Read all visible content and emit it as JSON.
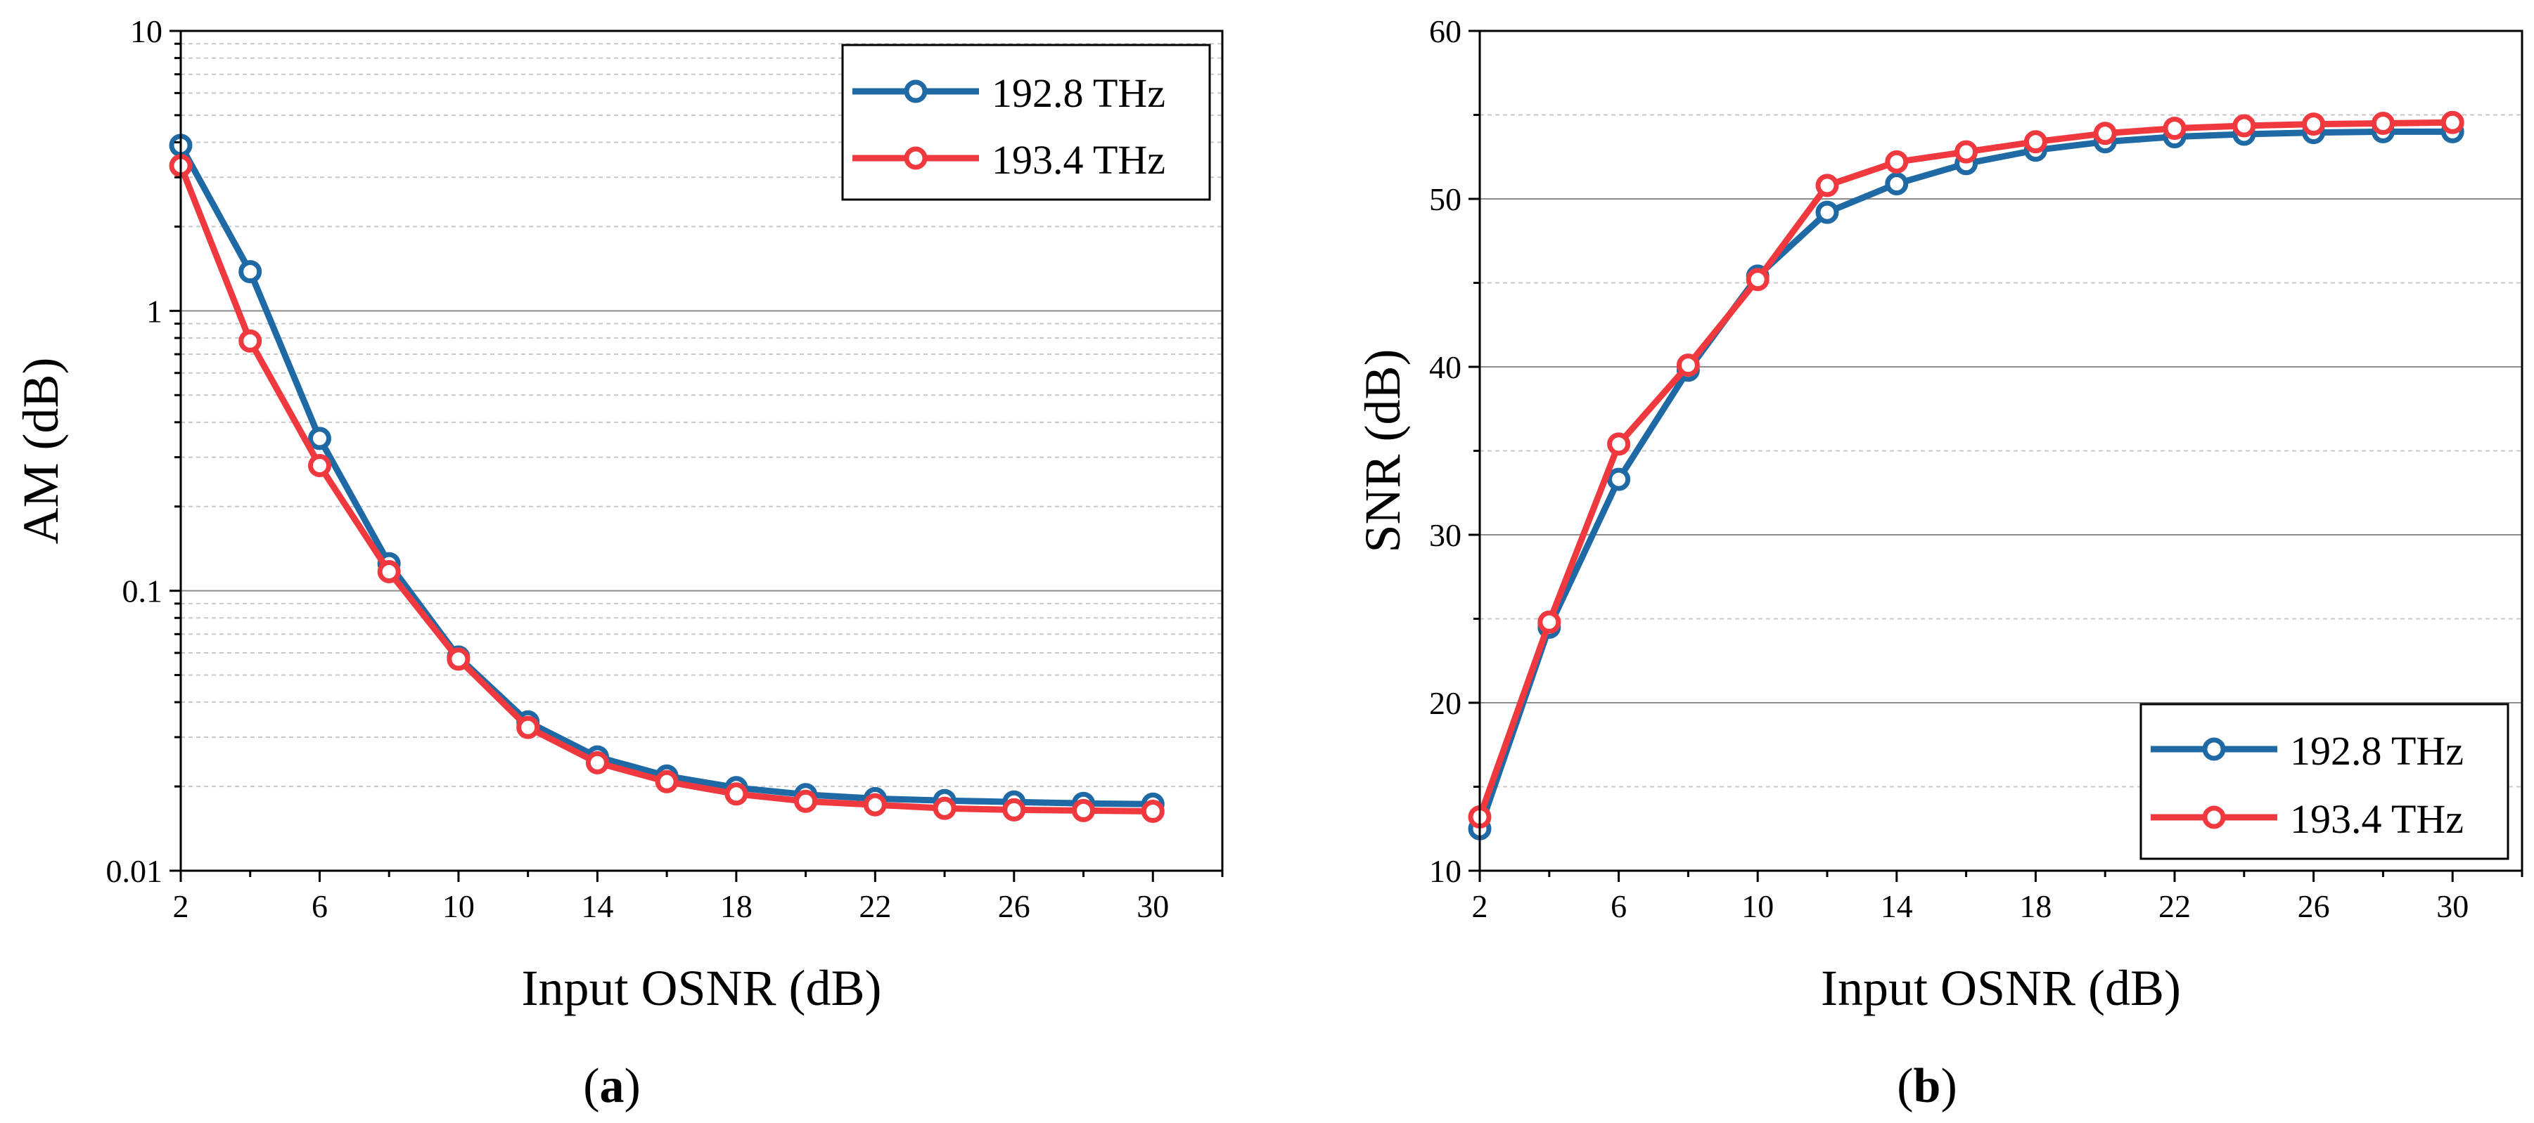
{
  "colors": {
    "series_blue": "#1f6aa5",
    "series_red": "#f0393f",
    "major_grid": "#8c8c8c",
    "minor_grid": "#c8c8c8",
    "axis": "#000000"
  },
  "chart_data": [
    {
      "type": "line",
      "panel_label": "a",
      "yscale": "log",
      "xlabel": "Input OSNR (dB)",
      "ylabel": "AM (dB)",
      "xlim": [
        2,
        32
      ],
      "ylim": [
        0.01,
        10
      ],
      "xticks": [
        2,
        6,
        10,
        14,
        18,
        22,
        26,
        30
      ],
      "xtick_labels": [
        "2",
        "6",
        "10",
        "14",
        "18",
        "22",
        "26",
        "30"
      ],
      "yticks": [
        0.01,
        0.1,
        1,
        10
      ],
      "ytick_labels": [
        "0.01",
        "0.1",
        "1",
        "10"
      ],
      "legend_position": "top-right",
      "x": [
        2,
        4,
        6,
        8,
        10,
        12,
        14,
        16,
        18,
        20,
        22,
        24,
        26,
        28,
        30
      ],
      "series": [
        {
          "name": "192.8 THz",
          "color": "#1f6aa5",
          "values": [
            3.9,
            1.38,
            0.35,
            0.125,
            0.058,
            0.034,
            0.0255,
            0.0218,
            0.0198,
            0.0187,
            0.0181,
            0.0178,
            0.0176,
            0.0174,
            0.0173
          ]
        },
        {
          "name": "193.4 THz",
          "color": "#f0393f",
          "values": [
            3.3,
            0.78,
            0.28,
            0.117,
            0.057,
            0.0325,
            0.0243,
            0.0208,
            0.0188,
            0.0177,
            0.0172,
            0.0167,
            0.0165,
            0.0164,
            0.0163
          ]
        }
      ]
    },
    {
      "type": "line",
      "panel_label": "b",
      "yscale": "linear",
      "xlabel": "Input OSNR (dB)",
      "ylabel": "SNR (dB)",
      "xlim": [
        2,
        32
      ],
      "ylim": [
        10,
        60
      ],
      "xticks": [
        2,
        6,
        10,
        14,
        18,
        22,
        26,
        30
      ],
      "xtick_labels": [
        "2",
        "6",
        "10",
        "14",
        "18",
        "22",
        "26",
        "30"
      ],
      "yticks": [
        10,
        20,
        30,
        40,
        50,
        60
      ],
      "ytick_labels": [
        "10",
        "20",
        "30",
        "40",
        "50",
        "60"
      ],
      "legend_position": "bottom-right",
      "x": [
        2,
        4,
        6,
        8,
        10,
        12,
        14,
        16,
        18,
        20,
        22,
        24,
        26,
        28,
        30
      ],
      "series": [
        {
          "name": "192.8 THz",
          "color": "#1f6aa5",
          "values": [
            12.5,
            24.5,
            33.3,
            39.8,
            45.4,
            49.2,
            50.9,
            52.1,
            52.9,
            53.4,
            53.7,
            53.85,
            53.95,
            54.0,
            54.0
          ]
        },
        {
          "name": "193.4 THz",
          "color": "#f0393f",
          "values": [
            13.2,
            24.8,
            35.4,
            40.1,
            45.2,
            50.8,
            52.2,
            52.8,
            53.4,
            53.9,
            54.2,
            54.35,
            54.45,
            54.5,
            54.55
          ]
        }
      ]
    }
  ]
}
